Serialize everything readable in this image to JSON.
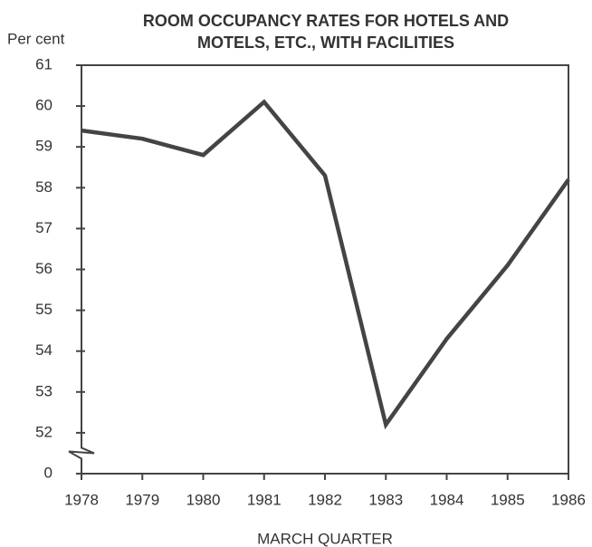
{
  "chart_data": {
    "type": "line",
    "title_lines": [
      "ROOM OCCUPANCY RATES FOR HOTELS AND",
      "MOTELS, ETC., WITH FACILITIES"
    ],
    "y_label": "Per cent",
    "x_label": "MARCH QUARTER",
    "categories": [
      "1978",
      "1979",
      "1980",
      "1981",
      "1982",
      "1983",
      "1984",
      "1985",
      "1986"
    ],
    "values": [
      59.4,
      59.2,
      58.8,
      60.1,
      58.3,
      52.2,
      54.3,
      56.1,
      58.2
    ],
    "color": "#444444",
    "ylim": [
      0,
      61
    ],
    "yticks": [
      0,
      52,
      53,
      54,
      55,
      56,
      57,
      58,
      59,
      60,
      61
    ],
    "axis_break": true
  }
}
